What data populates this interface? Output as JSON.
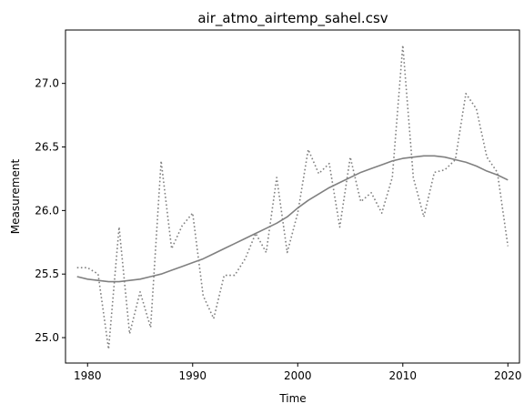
{
  "chart_data": {
    "type": "line",
    "title": "air_atmo_airtemp_sahel.csv",
    "xlabel": "Time",
    "ylabel": "Measurement",
    "xlim": [
      1977.9,
      2021.1
    ],
    "ylim": [
      24.8,
      27.42
    ],
    "xticks": [
      1980,
      1990,
      2000,
      2010,
      2020
    ],
    "xtick_labels": [
      "1980",
      "1990",
      "2000",
      "2010",
      "2020"
    ],
    "yticks": [
      25.0,
      25.5,
      26.0,
      26.5,
      27.0
    ],
    "ytick_labels": [
      "25.0",
      "25.5",
      "26.0",
      "26.5",
      "27.0"
    ],
    "grid": false,
    "legend": "none",
    "series": [
      {
        "style": "dotted",
        "color": "#808080",
        "x": [
          1979,
          1980,
          1981,
          1982,
          1983,
          1984,
          1985,
          1986,
          1987,
          1988,
          1989,
          1990,
          1991,
          1992,
          1993,
          1994,
          1995,
          1996,
          1997,
          1998,
          1999,
          2000,
          2001,
          2002,
          2003,
          2004,
          2005,
          2006,
          2007,
          2008,
          2009,
          2010,
          2011,
          2012,
          2013,
          2014,
          2015,
          2016,
          2017,
          2018,
          2019,
          2020
        ],
        "y": [
          25.55,
          25.55,
          25.5,
          24.91,
          25.87,
          25.03,
          25.36,
          25.08,
          26.39,
          25.7,
          25.88,
          25.98,
          25.33,
          25.15,
          25.49,
          25.49,
          25.62,
          25.82,
          25.67,
          26.26,
          25.67,
          25.98,
          26.48,
          26.29,
          26.37,
          25.87,
          26.42,
          26.07,
          26.14,
          25.98,
          26.26,
          27.3,
          26.26,
          25.95,
          26.3,
          26.32,
          26.4,
          26.92,
          26.8,
          26.42,
          26.3,
          25.72
        ]
      },
      {
        "style": "solid",
        "color": "#808080",
        "x": [
          1979,
          1980,
          1981,
          1982,
          1983,
          1984,
          1985,
          1986,
          1987,
          1988,
          1989,
          1990,
          1991,
          1992,
          1993,
          1994,
          1995,
          1996,
          1997,
          1998,
          1999,
          2000,
          2001,
          2002,
          2003,
          2004,
          2005,
          2006,
          2007,
          2008,
          2009,
          2010,
          2011,
          2012,
          2013,
          2014,
          2015,
          2016,
          2017,
          2018,
          2019,
          2020
        ],
        "y": [
          25.48,
          25.46,
          25.45,
          25.44,
          25.44,
          25.45,
          25.46,
          25.48,
          25.5,
          25.53,
          25.56,
          25.59,
          25.62,
          25.66,
          25.7,
          25.74,
          25.78,
          25.82,
          25.86,
          25.9,
          25.95,
          26.02,
          26.08,
          26.13,
          26.18,
          26.22,
          26.26,
          26.3,
          26.33,
          26.36,
          26.39,
          26.41,
          26.42,
          26.43,
          26.43,
          26.42,
          26.4,
          26.38,
          26.35,
          26.31,
          26.28,
          26.24
        ]
      }
    ]
  }
}
